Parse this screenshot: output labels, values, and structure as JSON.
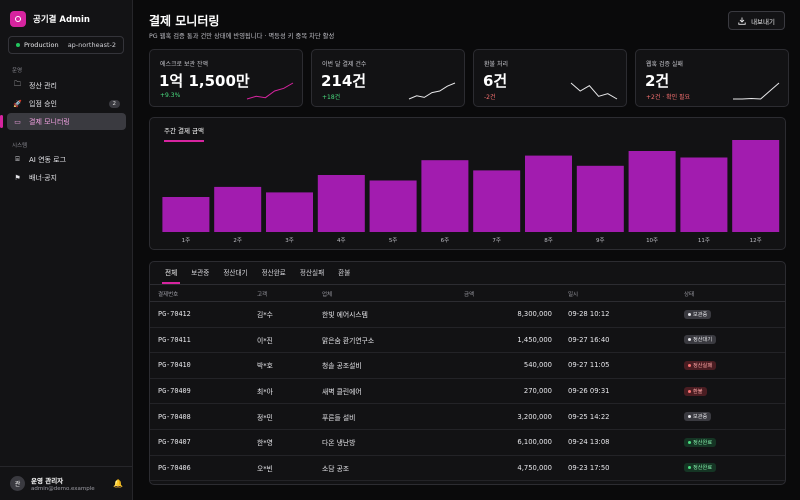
{
  "brand": {
    "name": "공기결 Admin"
  },
  "env": {
    "name": "Production",
    "region": "ap-northeast-2"
  },
  "sidebar": {
    "section1": "운영",
    "items1": [
      {
        "label": "정산 관리",
        "icon": "folder-icon",
        "badge": ""
      },
      {
        "label": "입점 승인",
        "icon": "rocket-icon",
        "badge": "2"
      },
      {
        "label": "결제 모니터링",
        "icon": "card-icon",
        "badge": "",
        "active": true
      }
    ],
    "section2": "시스템",
    "items2": [
      {
        "label": "AI 연동 로그",
        "icon": "robot-icon"
      },
      {
        "label": "배너·공지",
        "icon": "flag-icon"
      }
    ]
  },
  "user": {
    "initial": "관",
    "name": "운영 관리자",
    "email": "admin@demo.example"
  },
  "header": {
    "title": "결제 모니터링",
    "subtitle": "PG 웹훅 검증 통과 건만 상태에 반영됩니다 · 멱등성 키 중복 차단 활성",
    "export_label": "내보내기"
  },
  "kpis": [
    {
      "label": "에스크로 보관 잔액",
      "value": "1억 1,500만",
      "delta": "+9.3%",
      "tone": "pos",
      "spark": [
        2,
        3,
        2.5,
        5,
        6,
        8
      ],
      "color": "#d6249f"
    },
    {
      "label": "이번 달 결제 건수",
      "value": "214건",
      "delta": "+18건",
      "tone": "pos",
      "spark": [
        3,
        4,
        3.5,
        5,
        5.5,
        7,
        8
      ],
      "color": "#e8e8ea"
    },
    {
      "label": "환불 처리",
      "value": "6건",
      "delta": "-2건",
      "tone": "neg",
      "spark": [
        8,
        5,
        7,
        3,
        4,
        2
      ],
      "color": "#e8e8ea"
    },
    {
      "label": "웹훅 검증 실패",
      "value": "2건",
      "delta": "+2건 · 확인 필요",
      "tone": "neg",
      "spark": [
        2,
        2,
        2.2,
        2,
        5,
        8
      ],
      "color": "#e8e8ea"
    }
  ],
  "chart_tab": "주간 결제 금액",
  "chart_data": {
    "type": "bar",
    "categories": [
      "1주",
      "2주",
      "3주",
      "4주",
      "5주",
      "6주",
      "7주",
      "8주",
      "9주",
      "10주",
      "11주",
      "12주"
    ],
    "values": [
      38,
      49,
      43,
      62,
      56,
      78,
      67,
      83,
      72,
      88,
      81,
      100
    ],
    "ylim": [
      0,
      100
    ],
    "color": "#a21caf"
  },
  "table": {
    "tabs": [
      "전체",
      "보관중",
      "정산대기",
      "정산완료",
      "정산실패",
      "환불"
    ],
    "headers": {
      "id": "결제번호",
      "customer": "고객",
      "merchant": "업체",
      "amount": "금액",
      "date": "일시",
      "status": "상태"
    },
    "rows": [
      {
        "id": "PG-70412",
        "customer": "김*수",
        "merchant": "한빛 에어시스템",
        "amount": "8,300,000",
        "date": "09-28 10:12",
        "status": "보관중",
        "tone": "gray"
      },
      {
        "id": "PG-70411",
        "customer": "이*진",
        "merchant": "맑은숨 환기연구소",
        "amount": "1,450,000",
        "date": "09-27 16:40",
        "status": "정산대기",
        "tone": "gray"
      },
      {
        "id": "PG-70410",
        "customer": "박*호",
        "merchant": "청솔 공조설비",
        "amount": "540,000",
        "date": "09-27 11:05",
        "status": "정산실패",
        "tone": "red"
      },
      {
        "id": "PG-70409",
        "customer": "최*아",
        "merchant": "새벽 클린에어",
        "amount": "270,000",
        "date": "09-26 09:31",
        "status": "환불",
        "tone": "red"
      },
      {
        "id": "PG-70408",
        "customer": "정*민",
        "merchant": "푸른들 설비",
        "amount": "3,200,000",
        "date": "09-25 14:22",
        "status": "보관중",
        "tone": "gray"
      },
      {
        "id": "PG-70407",
        "customer": "한*영",
        "merchant": "다온 냉난방",
        "amount": "6,100,000",
        "date": "09-24 13:08",
        "status": "정산완료",
        "tone": "green"
      },
      {
        "id": "PG-70406",
        "customer": "오*빈",
        "merchant": "소담 공조",
        "amount": "4,750,000",
        "date": "09-23 17:50",
        "status": "정산완료",
        "tone": "green"
      }
    ]
  }
}
